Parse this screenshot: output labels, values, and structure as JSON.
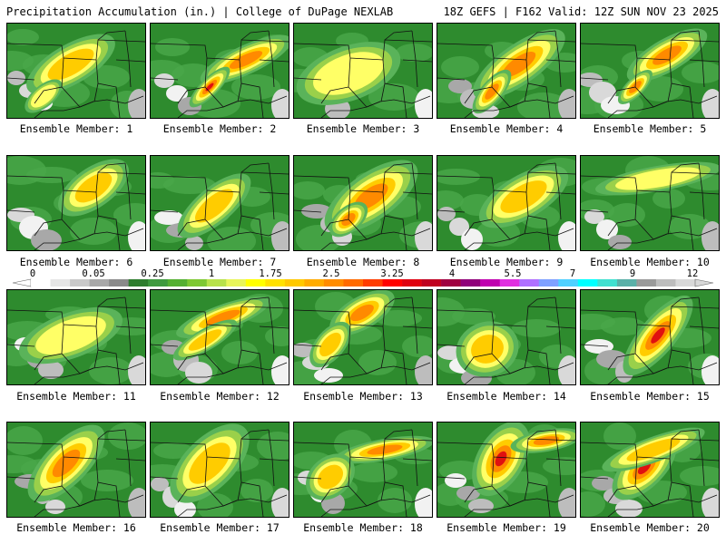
{
  "header": {
    "title_left": "Precipitation Accumulation (in.) | College of DuPage NEXLAB",
    "title_right": "18Z GEFS | F162 Valid: 12Z SUN NOV 23 2025"
  },
  "colorbar": {
    "tick_labels": [
      "0",
      "0.05",
      "0.25",
      "1",
      "1.75",
      "2.5",
      "3.25",
      "4",
      "5.5",
      "7",
      "9",
      "12"
    ],
    "colors": [
      "#ffffff",
      "#e6e6e6",
      "#c9c9c9",
      "#a8a8a8",
      "#8a8a8a",
      "#2f7d2f",
      "#3f9a3f",
      "#55b032",
      "#7ec832",
      "#b8e24a",
      "#e8f55a",
      "#ffff00",
      "#ffe100",
      "#ffc800",
      "#ffab00",
      "#ff8c00",
      "#ff6a00",
      "#ff3c00",
      "#ff0000",
      "#e00010",
      "#c00020",
      "#a00040",
      "#90007a",
      "#c000b0",
      "#e030e0",
      "#b070ff",
      "#7fa0ff",
      "#4fd0ff",
      "#00ffff",
      "#40e0d0",
      "#5ab0a8",
      "#9a9a9a",
      "#bdbdbd",
      "#d8d8d8"
    ]
  },
  "members": [
    {
      "label": "Ensemble Member: 1"
    },
    {
      "label": "Ensemble Member: 2"
    },
    {
      "label": "Ensemble Member: 3"
    },
    {
      "label": "Ensemble Member: 4"
    },
    {
      "label": "Ensemble Member: 5"
    },
    {
      "label": "Ensemble Member: 6"
    },
    {
      "label": "Ensemble Member: 7"
    },
    {
      "label": "Ensemble Member: 8"
    },
    {
      "label": "Ensemble Member: 9"
    },
    {
      "label": "Ensemble Member: 10"
    },
    {
      "label": "Ensemble Member: 11"
    },
    {
      "label": "Ensemble Member: 12"
    },
    {
      "label": "Ensemble Member: 13"
    },
    {
      "label": "Ensemble Member: 14"
    },
    {
      "label": "Ensemble Member: 15"
    },
    {
      "label": "Ensemble Member: 16"
    },
    {
      "label": "Ensemble Member: 17"
    },
    {
      "label": "Ensemble Member: 18"
    },
    {
      "label": "Ensemble Member: 19"
    },
    {
      "label": "Ensemble Member: 20"
    }
  ]
}
